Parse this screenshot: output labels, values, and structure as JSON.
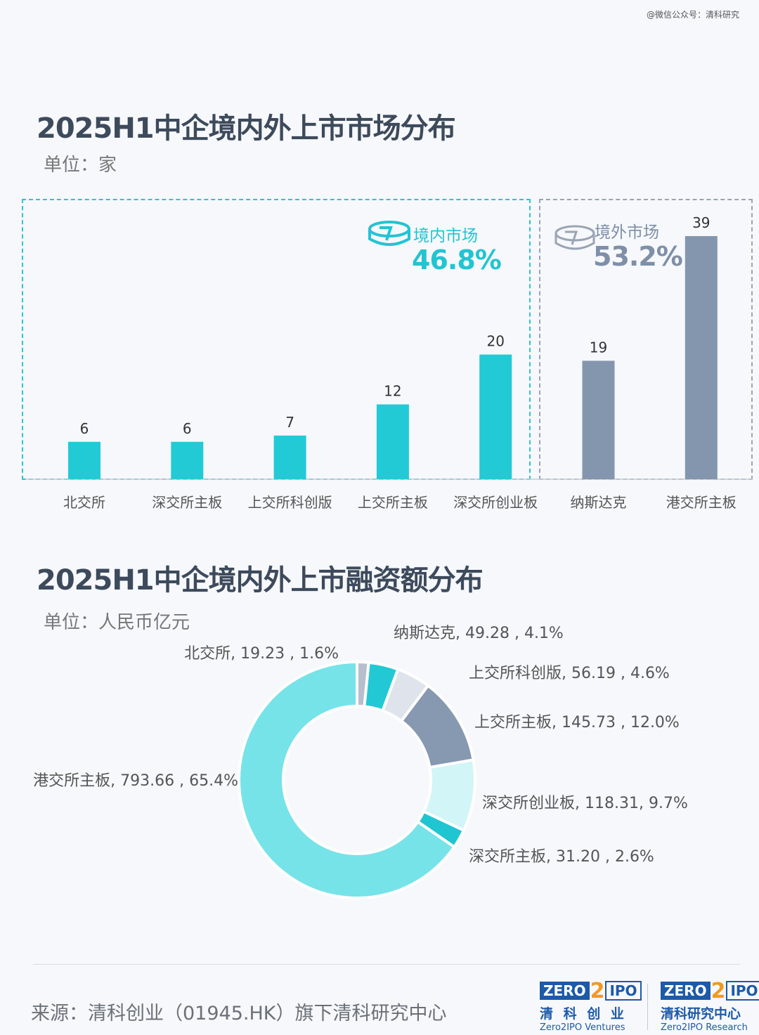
{
  "watermark": "@微信公众号：清科研究",
  "chart1": {
    "title": "2025H1中企境内外上市市场分布",
    "unit": "单位：家",
    "domestic_label": "境内市场",
    "domestic_pct": "46.8%",
    "overseas_label": "境外市场",
    "overseas_pct": "53.2%"
  },
  "chart2": {
    "title": "2025H1中企境内外上市融资额分布",
    "unit": "单位：人民币亿元"
  },
  "chart_data": [
    {
      "type": "bar",
      "title": "2025H1中企境内外上市市场分布",
      "ylabel": "单位：家",
      "categories": [
        "北交所",
        "深交所主板",
        "上交所科创版",
        "上交所主板",
        "深交所创业板",
        "纳斯达克",
        "港交所主板"
      ],
      "values": [
        6,
        6,
        7,
        12,
        20,
        19,
        39
      ],
      "groups": [
        "domestic",
        "domestic",
        "domestic",
        "domestic",
        "domestic",
        "overseas",
        "overseas"
      ],
      "colors": {
        "domestic": "#22cad6",
        "overseas": "#8496ae"
      },
      "ylim": [
        0,
        39
      ],
      "grid": false,
      "legend": "none"
    },
    {
      "type": "pie",
      "title": "2025H1中企境内外上市融资额分布",
      "unit": "单位：人民币亿元",
      "donut": true,
      "slices": [
        {
          "label": "北交所",
          "value": 19.23,
          "pct": 1.6,
          "text": "北交所, 19.23 , 1.6%",
          "color": "#b7bfcc"
        },
        {
          "label": "纳斯达克",
          "value": 49.28,
          "pct": 4.1,
          "text": "纳斯达克, 49.28 , 4.1%",
          "color": "#22c9d4"
        },
        {
          "label": "上交所科创版",
          "value": 56.19,
          "pct": 4.6,
          "text": "上交所科创版, 56.19 , 4.6%",
          "color": "#dfe4ec"
        },
        {
          "label": "上交所主板",
          "value": 145.73,
          "pct": 12.0,
          "text": "上交所主板, 145.73 , 12.0%",
          "color": "#8699b1"
        },
        {
          "label": "深交所创业板",
          "value": 118.31,
          "pct": 9.7,
          "text": "深交所创业板, 118.31, 9.7%",
          "color": "#d2f5f7"
        },
        {
          "label": "深交所主板",
          "value": 31.2,
          "pct": 2.6,
          "text": "深交所主板, 31.20 , 2.6%",
          "color": "#1fc6d2"
        },
        {
          "label": "港交所主板",
          "value": 793.66,
          "pct": 65.4,
          "text": "港交所主板, 793.66 , 65.4%",
          "color": "#76e3e9"
        }
      ]
    }
  ],
  "footer": {
    "source": "来源：清科创业（01945.HK）旗下清科研究中心",
    "logo1": {
      "zero": "ZERO",
      "two": "2",
      "ipo": "IPO",
      "cn": "清 科 创 业",
      "en": "Zero2IPO Ventures"
    },
    "logo2": {
      "zero": "ZERO",
      "two": "2",
      "ipo": "IPO",
      "cn": "清科研究中心",
      "en": "Zero2IPO Research"
    }
  }
}
